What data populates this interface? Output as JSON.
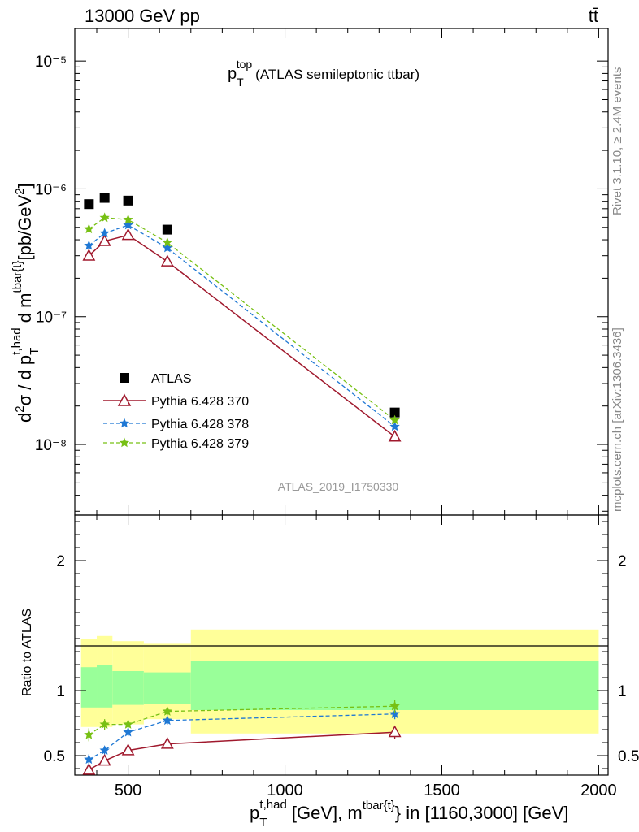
{
  "header": {
    "left": "13000 GeV pp",
    "right": "tt̄"
  },
  "side_labels": {
    "rivet": "Rivet 3.1.10, ≥ 2.4M events",
    "mcplots": "mcplots.cern.ch [arXiv:1306.3436]"
  },
  "watermark": "ATLAS_2019_I1750330",
  "colors": {
    "atlas": "#000000",
    "p370": "#a0192d",
    "p378": "#1f78d4",
    "p379": "#77c014",
    "band_inner": "#99ff99",
    "band_outer": "#ffff99"
  },
  "chart_data": [
    {
      "type": "scatter",
      "title": "p_T^top (ATLAS semileptonic ttbar)",
      "ylabel": "d²σ / d p_T^t,had d m^tbar{t} [pb/GeV²]",
      "y_scale": "log",
      "xlim": [
        330,
        2030
      ],
      "ylim": [
        2.8e-09,
        1.8e-05
      ],
      "x_ticks": [
        500,
        1000,
        1500,
        2000
      ],
      "y_ticks": [
        {
          "value": 1e-08,
          "label": "10⁻⁸"
        },
        {
          "value": 1e-07,
          "label": "10⁻⁷"
        },
        {
          "value": 1e-06,
          "label": "10⁻⁶"
        },
        {
          "value": 1e-05,
          "label": "10⁻⁵"
        }
      ],
      "x": [
        375,
        425,
        500,
        625,
        1350
      ],
      "series": [
        {
          "name": "ATLAS",
          "marker": "square",
          "values": [
            7.6e-07,
            8.5e-07,
            8.1e-07,
            4.8e-07,
            1.78e-08
          ]
        },
        {
          "name": "Pythia 6.428 370",
          "marker": "triangle",
          "line": "solid",
          "values": [
            3e-07,
            3.9e-07,
            4.35e-07,
            2.7e-07,
            1.15e-08
          ]
        },
        {
          "name": "Pythia 6.428 378",
          "marker": "star",
          "line": "dashed",
          "values": [
            3.6e-07,
            4.5e-07,
            5.2e-07,
            3.45e-07,
            1.38e-08
          ]
        },
        {
          "name": "Pythia 6.428 379",
          "marker": "star",
          "line": "dashed",
          "values": [
            4.85e-07,
            5.95e-07,
            5.75e-07,
            3.8e-07,
            1.55e-08
          ]
        }
      ],
      "legend": "lower-left"
    },
    {
      "type": "line",
      "ylabel": "Ratio to ATLAS",
      "xlabel": "p_T^t,had [GeV], m^tbar{t} in [1160,3000] [GeV]",
      "xlim": [
        330,
        2030
      ],
      "ylim": [
        0.35,
        2.35
      ],
      "x_ticks": [
        500,
        1000,
        1500,
        2000
      ],
      "y_ticks": [
        0.5,
        1,
        2
      ],
      "bins": [
        [
          350,
          400
        ],
        [
          400,
          450
        ],
        [
          450,
          550
        ],
        [
          550,
          700
        ],
        [
          700,
          2000
        ]
      ],
      "band_inner": [
        [
          0.87,
          1.18
        ],
        [
          0.87,
          1.2
        ],
        [
          0.89,
          1.15
        ],
        [
          0.9,
          1.14
        ],
        [
          0.85,
          1.23
        ]
      ],
      "band_outer": [
        [
          0.72,
          1.4
        ],
        [
          0.72,
          1.42
        ],
        [
          0.74,
          1.38
        ],
        [
          0.78,
          1.36
        ],
        [
          0.67,
          1.47
        ]
      ],
      "x": [
        375,
        425,
        500,
        625,
        1350
      ],
      "series": [
        {
          "name": "Pythia 6.428 370",
          "values": [
            0.39,
            0.46,
            0.54,
            0.59,
            0.68
          ],
          "errors": [
            0.03,
            0.03,
            0.02,
            0.02,
            0.05
          ]
        },
        {
          "name": "Pythia 6.428 378",
          "values": [
            0.47,
            0.54,
            0.68,
            0.77,
            0.82
          ],
          "errors": [
            0.04,
            0.03,
            0.03,
            0.03,
            0.04
          ]
        },
        {
          "name": "Pythia 6.428 379",
          "values": [
            0.66,
            0.74,
            0.74,
            0.84,
            0.88
          ],
          "errors": [
            0.05,
            0.04,
            0.03,
            0.03,
            0.05
          ]
        }
      ]
    }
  ]
}
